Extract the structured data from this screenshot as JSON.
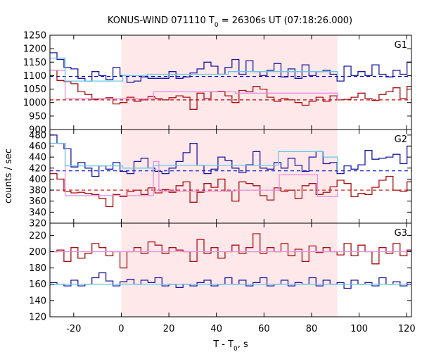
{
  "chart_data": {
    "type": "line",
    "title": "KONUS-WIND 071110 T0 = 26306s UT (07:18:26.000)",
    "title_parts": {
      "pre": "KONUS-WIND 071110 T",
      "sub": "0",
      "post": " = 26306s UT (07:18:26.000)"
    },
    "xlabel": "T - T0, s",
    "xlabel_parts": {
      "pre": "T - T",
      "sub": "0",
      "post": ", s"
    },
    "ylabel": "counts / sec",
    "xlim": [
      -30,
      122
    ],
    "xticks": [
      -20,
      0,
      20,
      40,
      60,
      80,
      100,
      120
    ],
    "highlight_interval": [
      0,
      90.9
    ],
    "colors": {
      "highlight": "#ffe8ea",
      "low_channel": "#aa1111",
      "high_channel": "#1a1aa0",
      "low_fit": "#e88ee0",
      "high_fit": "#66c8e8",
      "low_background": "#cc0000",
      "high_background": "#0000cc"
    },
    "panels": [
      {
        "label": "G1",
        "ylim": [
          900,
          1250
        ],
        "yticks": [
          900,
          950,
          1000,
          1050,
          1100,
          1150,
          1200,
          1250
        ],
        "background_levels": {
          "low": 1010,
          "high": 1097
        },
        "series": [
          {
            "channel": "low",
            "bin": 2.944,
            "start": -30,
            "values": [
              1120,
              1082,
              1078,
              1070,
              1040,
              1030,
              1012,
              1015,
              1018,
              995,
              1000,
              1020,
              1005,
              1010,
              1022,
              1015,
              1010,
              1018,
              1025,
              1020,
              975,
              1035,
              1015,
              1040,
              1042,
              1025,
              1000,
              1045,
              1040,
              1060,
              1050,
              1020,
              1005,
              1015,
              1010,
              1000,
              990,
              1005,
              1020,
              1005,
              1025,
              1010,
              1012,
              1020,
              1035,
              1015,
              1008,
              1030,
              1040,
              1055,
              1015,
              1060,
              1050,
              1060,
              1040,
              1050,
              1065,
              1015,
              1060,
              1050,
              1010,
              1005,
              1015,
              1005,
              995,
              1020,
              1015,
              990,
              1000,
              1010,
              1020,
              1020,
              1015,
              1025,
              1030,
              1020,
              1012
            ]
          },
          {
            "channel": "high",
            "bin": 2.944,
            "start": -30,
            "values": [
              1185,
              1160,
              1130,
              1125,
              1090,
              1080,
              1115,
              1100,
              1085,
              1130,
              1100,
              1075,
              1080,
              1095,
              1090,
              1090,
              1090,
              1115,
              1090,
              1095,
              1110,
              1125,
              1150,
              1135,
              1105,
              1130,
              1160,
              1105,
              1155,
              1115,
              1100,
              1120,
              1145,
              1095,
              1125,
              1090,
              1140,
              1100,
              1115,
              1120,
              1105,
              1080,
              1135,
              1100,
              1115,
              1100,
              1140,
              1105,
              1095,
              1120,
              1105,
              1150,
              1115,
              1130,
              1120,
              1095,
              1140,
              1105,
              1150,
              1125,
              1100,
              1125,
              1110,
              1080,
              1100,
              1085,
              1090,
              1110,
              1085,
              1100,
              1070,
              1080,
              1100,
              1100,
              1085,
              1100,
              1095
            ]
          },
          {
            "channel": "low",
            "kind": "fit",
            "points": [
              [
                -30,
                1120
              ],
              [
                -23.6,
                1120
              ],
              [
                -23.6,
                1015
              ],
              [
                13.5,
                1015
              ],
              [
                13.5,
                1040
              ],
              [
                48,
                1040
              ],
              [
                48,
                1035
              ],
              [
                90.9,
                1035
              ],
              [
                90.9,
                1005
              ]
            ]
          },
          {
            "channel": "high",
            "kind": "fit",
            "points": [
              [
                -30,
                1165
              ],
              [
                -23.6,
                1165
              ],
              [
                -23.6,
                1080
              ],
              [
                0.6,
                1080
              ],
              [
                0.6,
                1100
              ],
              [
                11,
                1100
              ],
              [
                11,
                1105
              ],
              [
                45,
                1105
              ],
              [
                45,
                1115
              ],
              [
                90.9,
                1115
              ],
              [
                90.9,
                1098
              ]
            ]
          }
        ]
      },
      {
        "label": "G2",
        "ylim": [
          320,
          490
        ],
        "yticks": [
          320,
          340,
          360,
          380,
          400,
          420,
          440,
          460,
          480
        ],
        "background_levels": {
          "low": 380,
          "high": 415
        },
        "series": [
          {
            "channel": "low",
            "bin": 2.944,
            "start": -30,
            "values": [
              410,
              400,
              378,
              375,
              376,
              374,
              372,
              365,
              350,
              372,
              368,
              377,
              380,
              372,
              384,
              375,
              381,
              376,
              388,
              395,
              358,
              376,
              392,
              385,
              400,
              378,
              360,
              395,
              392,
              388,
              370,
              362,
              384,
              378,
              380,
              365,
              388,
              392,
              372,
              376,
              386,
              398,
              392,
              368,
              374,
              372,
              385,
              398,
              405,
              380,
              378,
              395,
              404,
              408,
              395,
              378,
              352,
              372,
              395,
              370,
              380,
              372,
              365,
              380,
              375,
              360,
              368,
              362,
              348,
              356,
              368,
              346,
              352,
              350,
              365,
              340,
              345
            ]
          },
          {
            "channel": "high",
            "bin": 2.944,
            "start": -30,
            "values": [
              480,
              465,
              455,
              422,
              430,
              420,
              405,
              424,
              418,
              430,
              414,
              410,
              432,
              438,
              420,
              414,
              410,
              420,
              432,
              448,
              465,
              425,
              410,
              418,
              440,
              434,
              420,
              412,
              426,
              450,
              420,
              418,
              430,
              420,
              438,
              425,
              414,
              440,
              450,
              428,
              430,
              410,
              424,
              418,
              426,
              452,
              436,
              438,
              440,
              445,
              428,
              460,
              445,
              464,
              430,
              425,
              455,
              430,
              448,
              415,
              420,
              410,
              416,
              418,
              395,
              422,
              420,
              405,
              400,
              416,
              410,
              395,
              405,
              420,
              380,
              410,
              415
            ]
          },
          {
            "channel": "low",
            "kind": "fit",
            "points": [
              [
                -30,
                465
              ],
              [
                -23.6,
                465
              ],
              [
                -23.6,
                370
              ],
              [
                13.5,
                370
              ],
              [
                13.5,
                432
              ],
              [
                15.8,
                432
              ],
              [
                15.8,
                378
              ],
              [
                48,
                378
              ],
              [
                48,
                380
              ],
              [
                66.4,
                380
              ],
              [
                66.4,
                408
              ],
              [
                82.5,
                408
              ],
              [
                82.5,
                368
              ],
              [
                90.9,
                368
              ],
              [
                90.9,
                380
              ]
            ]
          },
          {
            "channel": "high",
            "kind": "fit",
            "points": [
              [
                -30,
                465
              ],
              [
                -23.6,
                465
              ],
              [
                -23.6,
                424
              ],
              [
                0.6,
                424
              ],
              [
                0.6,
                420
              ],
              [
                13.5,
                420
              ],
              [
                13.5,
                425
              ],
              [
                66,
                425
              ],
              [
                66,
                450
              ],
              [
                85,
                450
              ],
              [
                85,
                440
              ],
              [
                90.9,
                440
              ],
              [
                90.9,
                415
              ]
            ]
          }
        ]
      },
      {
        "label": "G3",
        "ylim": [
          120,
          235
        ],
        "yticks": [
          120,
          140,
          160,
          180,
          200,
          220
        ],
        "series": [
          {
            "channel": "low",
            "bin": 2.944,
            "start": -30,
            "values": [
              200,
              202,
              188,
              205,
              192,
              198,
              210,
              205,
              195,
              200,
              180,
              200,
              205,
              198,
              212,
              208,
              198,
              205,
              202,
              200,
              188,
              215,
              198,
              205,
              192,
              200,
              208,
              198,
              205,
              222,
              198,
              205,
              200,
              210,
              195,
              203,
              188,
              207,
              199,
              205,
              200,
              196,
              210,
              195,
              208,
              200,
              185,
              205,
              198,
              210,
              195,
              202,
              200,
              208,
              195,
              210,
              200,
              210,
              195,
              205,
              200,
              210,
              195,
              205,
              200,
              178,
              200,
              205,
              210,
              198,
              200,
              203,
              190,
              200,
              212,
              200,
              205
            ]
          },
          {
            "channel": "high",
            "bin": 2.944,
            "start": -30,
            "values": [
              162,
              160,
              158,
              165,
              158,
              160,
              168,
              174,
              164,
              158,
              163,
              166,
              160,
              165,
              162,
              168,
              158,
              160,
              156,
              160,
              158,
              162,
              165,
              158,
              160,
              168,
              160,
              165,
              158,
              162,
              168,
              158,
              160,
              165,
              158,
              162,
              160,
              168,
              158,
              165,
              160,
              162,
              155,
              165,
              160,
              162,
              158,
              168,
              160,
              163,
              158,
              162,
              165,
              160,
              158,
              168,
              160,
              162,
              165,
              158,
              162,
              160,
              165,
              158,
              160,
              162,
              168,
              160,
              158,
              165,
              158,
              160,
              162,
              158,
              160,
              160,
              158
            ]
          },
          {
            "channel": "low",
            "kind": "fit",
            "points": [
              [
                -30,
                200
              ],
              [
                122,
                200
              ]
            ]
          },
          {
            "channel": "high",
            "kind": "fit",
            "points": [
              [
                -30,
                160
              ],
              [
                122,
                160
              ]
            ]
          }
        ]
      }
    ]
  }
}
